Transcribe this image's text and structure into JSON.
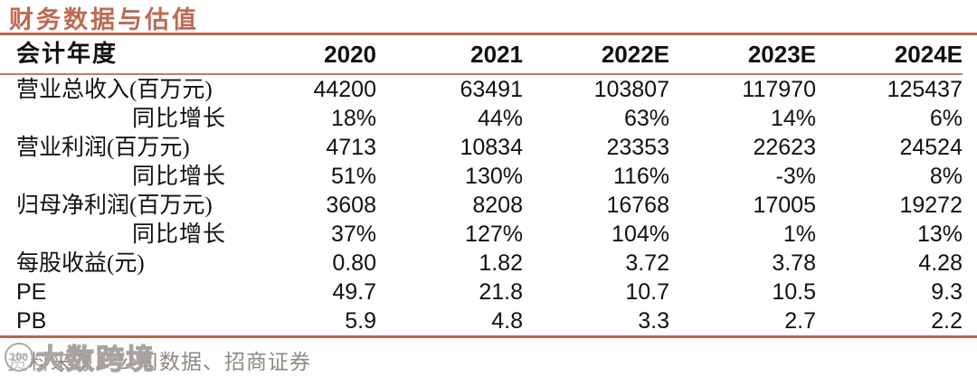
{
  "title": "财务数据与估值",
  "colors": {
    "accent": "#BE6A52",
    "rule": "#B5684F",
    "rule-thin": "#C47A62",
    "text": "#111111",
    "footer-text": "#8F8983",
    "watermark": "#ABA8A4"
  },
  "table": {
    "header": {
      "label": "会计年度",
      "years": [
        "2020",
        "2021",
        "2022E",
        "2023E",
        "2024E"
      ]
    },
    "rows": [
      {
        "label": "营业总收入(百万元)",
        "values": [
          "44200",
          "63491",
          "103807",
          "117970",
          "125437"
        ]
      },
      {
        "label": "同比增长",
        "values": [
          "18%",
          "44%",
          "63%",
          "14%",
          "6%"
        ]
      },
      {
        "label": "营业利润(百万元)",
        "values": [
          "4713",
          "10834",
          "23353",
          "22623",
          "24524"
        ]
      },
      {
        "label": "同比增长",
        "values": [
          "51%",
          "130%",
          "116%",
          "-3%",
          "8%"
        ]
      },
      {
        "label": "归母净利润(百万元)",
        "values": [
          "3608",
          "8208",
          "16768",
          "17005",
          "19272"
        ]
      },
      {
        "label": "同比增长",
        "values": [
          "37%",
          "127%",
          "104%",
          "1%",
          "13%"
        ]
      },
      {
        "label": "每股收益(元)",
        "values": [
          "0.80",
          "1.82",
          "3.72",
          "3.78",
          "4.28"
        ]
      },
      {
        "label": "PE",
        "values": [
          "49.7",
          "21.8",
          "10.7",
          "10.5",
          "9.3"
        ]
      },
      {
        "label": "PB",
        "values": [
          "5.9",
          "4.8",
          "3.3",
          "2.7",
          "2.2"
        ]
      }
    ]
  },
  "footer": {
    "source": "资料来源：公司数据、招商证券"
  },
  "watermark": {
    "logo_text": "100",
    "text": "大数跨境"
  }
}
